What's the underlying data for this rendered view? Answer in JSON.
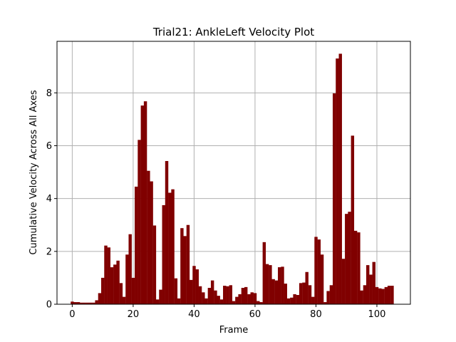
{
  "chart_data": {
    "type": "bar",
    "title": "Trial21: AnkleLeft Velocity Plot",
    "xlabel": "Frame",
    "ylabel": "Cumulative Velocity Across All Axes",
    "xlim": [
      -5,
      111
    ],
    "ylim": [
      0,
      9.95
    ],
    "xticks": [
      0,
      20,
      40,
      60,
      80,
      100
    ],
    "yticks": [
      0,
      2,
      4,
      6,
      8
    ],
    "grid": true,
    "bar_color": "#800000",
    "x": [
      0,
      1,
      2,
      3,
      4,
      5,
      6,
      7,
      8,
      9,
      10,
      11,
      12,
      13,
      14,
      15,
      16,
      17,
      18,
      19,
      20,
      21,
      22,
      23,
      24,
      25,
      26,
      27,
      28,
      29,
      30,
      31,
      32,
      33,
      34,
      35,
      36,
      37,
      38,
      39,
      40,
      41,
      42,
      43,
      44,
      45,
      46,
      47,
      48,
      49,
      50,
      51,
      52,
      53,
      54,
      55,
      56,
      57,
      58,
      59,
      60,
      61,
      62,
      63,
      64,
      65,
      66,
      67,
      68,
      69,
      70,
      71,
      72,
      73,
      74,
      75,
      76,
      77,
      78,
      79,
      80,
      81,
      82,
      83,
      84,
      85,
      86,
      87,
      88,
      89,
      90,
      91,
      92,
      93,
      94,
      95,
      96,
      97,
      98,
      99,
      100,
      101,
      102,
      103,
      104,
      105
    ],
    "values": [
      0.1,
      0.08,
      0.08,
      0.06,
      0.06,
      0.06,
      0.06,
      0.06,
      0.15,
      0.42,
      1.0,
      2.22,
      2.15,
      1.4,
      1.5,
      1.65,
      0.8,
      0.28,
      1.88,
      2.65,
      1.0,
      4.45,
      6.22,
      7.52,
      7.68,
      5.05,
      4.65,
      2.98,
      0.18,
      0.55,
      3.75,
      5.42,
      4.22,
      4.35,
      0.98,
      0.22,
      2.88,
      2.58,
      3.0,
      0.92,
      1.45,
      1.32,
      0.68,
      0.45,
      0.22,
      0.62,
      0.9,
      0.52,
      0.32,
      0.18,
      0.7,
      0.68,
      0.72,
      0.12,
      0.28,
      0.38,
      0.62,
      0.65,
      0.38,
      0.45,
      0.42,
      0.12,
      0.08,
      2.35,
      1.52,
      1.48,
      0.95,
      0.9,
      1.4,
      1.42,
      0.78,
      0.22,
      0.25,
      0.38,
      0.35,
      0.8,
      0.82,
      1.22,
      0.72,
      0.28,
      2.55,
      2.45,
      1.88,
      0.08,
      0.5,
      0.72,
      7.98,
      9.3,
      9.48,
      1.72,
      3.42,
      3.5,
      6.38,
      2.78,
      2.72,
      0.52,
      0.72,
      1.48,
      1.12,
      1.6,
      0.65,
      0.6,
      0.58,
      0.65,
      0.7,
      0.7
    ]
  }
}
